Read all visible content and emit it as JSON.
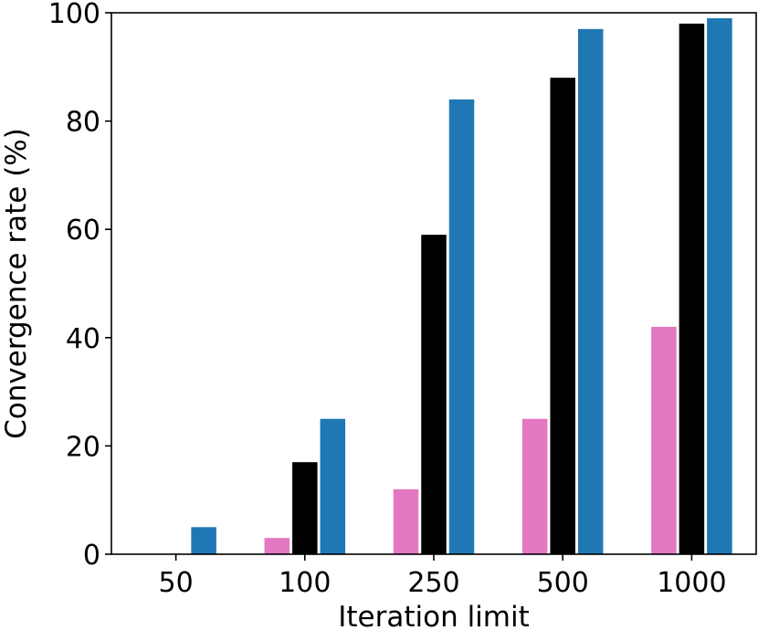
{
  "chart_data": {
    "type": "bar",
    "title": "",
    "xlabel": "Iteration limit",
    "ylabel": "Convergence rate (%)",
    "categories": [
      "50",
      "100",
      "250",
      "500",
      "1000"
    ],
    "ylim": [
      0,
      100
    ],
    "yticks": [
      0,
      20,
      40,
      60,
      80,
      100
    ],
    "grid": false,
    "legend": "none",
    "series": [
      {
        "color": "#e377c2",
        "values": [
          0,
          3,
          12,
          25,
          42
        ]
      },
      {
        "color": "#000000",
        "values": [
          0,
          17,
          59,
          88,
          98
        ]
      },
      {
        "color": "#1f77b4",
        "values": [
          5,
          25,
          84,
          97,
          99
        ]
      }
    ]
  }
}
